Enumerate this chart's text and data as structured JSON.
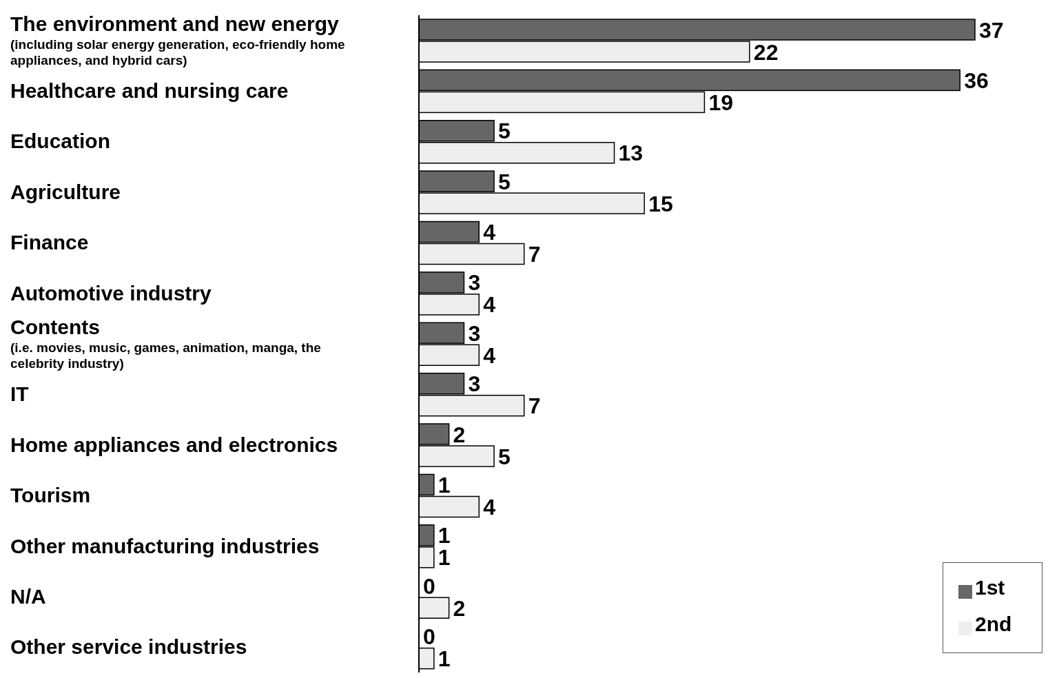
{
  "chart_data": {
    "type": "bar",
    "orientation": "horizontal",
    "categories": [
      "The environment and new energy\n(including solar energy generation, eco-friendly home\nappliances, and hybrid cars)",
      "Healthcare and nursing care",
      "Education",
      "Agriculture",
      "Finance",
      "Automotive industry",
      "Contents\n(i.e. movies, music, games, animation, manga, the\ncelebrity industry)",
      "IT",
      "Home appliances and electronics",
      "Tourism",
      "Other manufacturing industries",
      "N/A",
      "Other service industries"
    ],
    "series": [
      {
        "name": "1st",
        "color": "#666666",
        "values": [
          37,
          36,
          5,
          5,
          4,
          3,
          3,
          3,
          2,
          1,
          1,
          0,
          0
        ]
      },
      {
        "name": "2nd",
        "color": "#eeeeee",
        "values": [
          22,
          19,
          13,
          15,
          7,
          4,
          4,
          7,
          5,
          4,
          1,
          2,
          1
        ]
      }
    ],
    "data_labels": true,
    "legend": "bottom right"
  }
}
